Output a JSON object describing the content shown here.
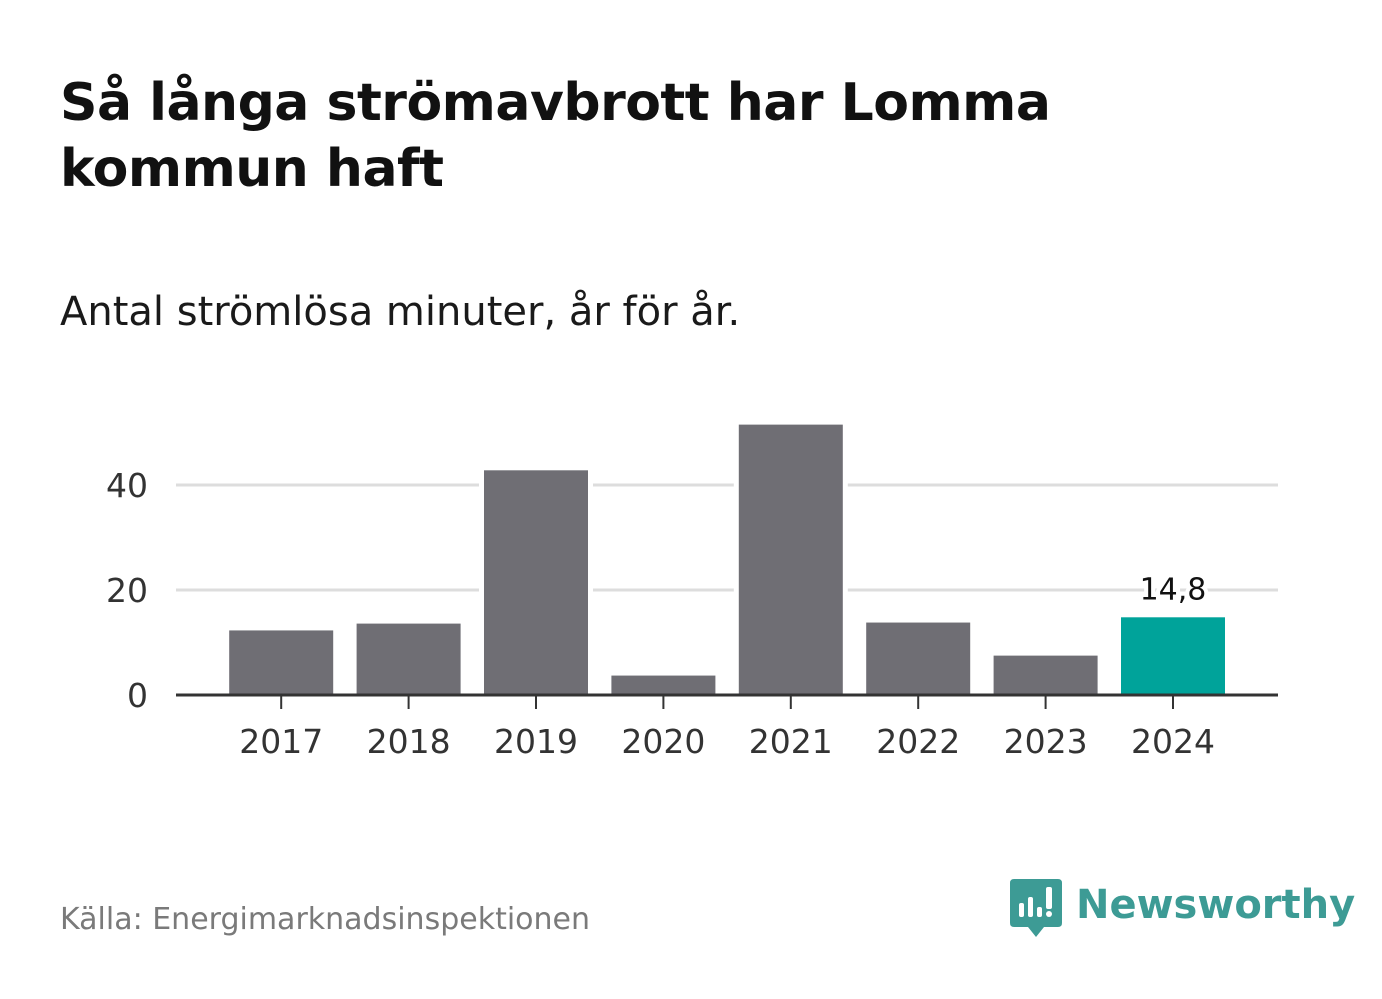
{
  "title": "Så långa strömavbrott har Lomma kommun haft",
  "subtitle": "Antal strömlösa minuter, år för år.",
  "source": "Källa: Energimarknadsinspektionen",
  "brand": {
    "name": "Newsworthy",
    "icon": "newsworthy-logo-icon"
  },
  "colors": {
    "bar": "#6f6e74",
    "highlight": "#00a39a",
    "grid": "#dddddd",
    "axis": "#333333",
    "brand": "#3d9b95"
  },
  "chart_data": {
    "type": "bar",
    "title": "Så långa strömavbrott har Lomma kommun haft",
    "subtitle": "Antal strömlösa minuter, år för år.",
    "xlabel": "",
    "ylabel": "",
    "categories": [
      "2017",
      "2018",
      "2019",
      "2020",
      "2021",
      "2022",
      "2023",
      "2024"
    ],
    "values": [
      12.3,
      13.6,
      42.8,
      3.7,
      51.5,
      13.8,
      7.5,
      14.8
    ],
    "highlight_index": 7,
    "data_labels": [
      {
        "index": 7,
        "text": "14,8"
      }
    ],
    "ylim": [
      0,
      55
    ],
    "yticks": [
      0,
      20,
      40
    ],
    "grid": true
  }
}
